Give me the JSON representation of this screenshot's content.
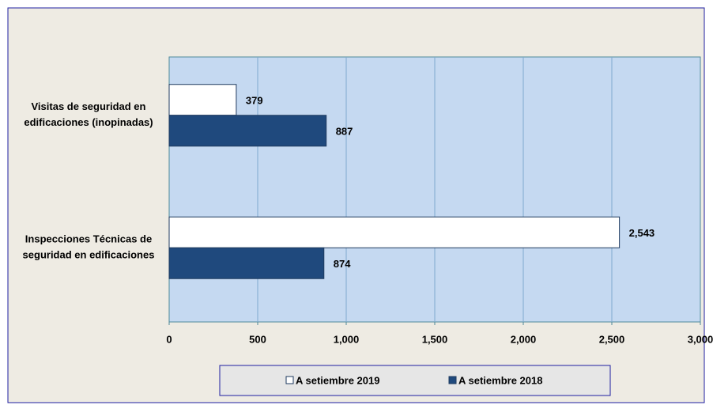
{
  "chart_data": {
    "type": "hbar",
    "categories": [
      [
        "Visitas de seguridad en",
        "edificaciones (inopinadas)"
      ],
      [
        "Inspecciones Técnicas de",
        "seguridad en edificaciones"
      ]
    ],
    "series": [
      {
        "name": "A setiembre 2019",
        "color": "#ffffff",
        "values": [
          379,
          2543
        ],
        "value_labels": [
          "379",
          "2,543"
        ]
      },
      {
        "name": "A setiembre 2018",
        "color": "#1f497d",
        "values": [
          887,
          874
        ]
      }
    ],
    "xlim": [
      0,
      3000
    ],
    "xticks": [
      0,
      500,
      {
        "value": 1000,
        "label": "1,000"
      },
      {
        "value": 1500,
        "label": "1,500"
      },
      {
        "value": 2000,
        "label": "2,000"
      },
      {
        "value": 2500,
        "label": "2,500"
      },
      {
        "value": 3000,
        "label": "3,000"
      }
    ],
    "grid": true,
    "legend": "bottom"
  }
}
